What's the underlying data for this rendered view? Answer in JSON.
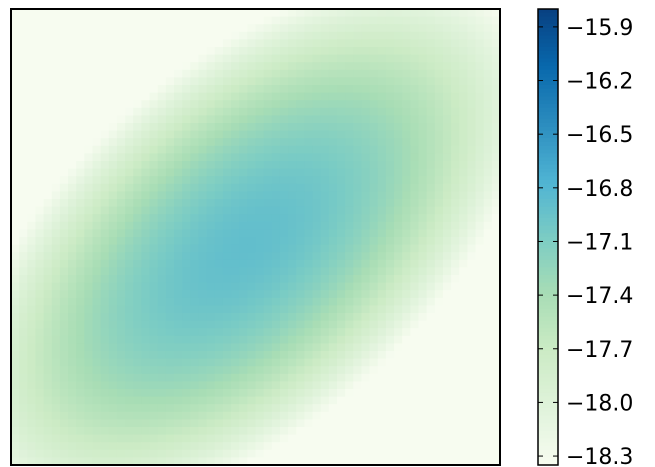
{
  "chart_data": {
    "type": "heatmap",
    "title": "",
    "xlabel": "",
    "ylabel": "",
    "colormap": "GnBu",
    "color_stops": [
      "#f7fcf0",
      "#e0f3db",
      "#ccebc5",
      "#a8ddb5",
      "#7bccc4",
      "#4eb3d3",
      "#2b8cbe",
      "#0868ac",
      "#084081"
    ],
    "value_range": [
      -18.35,
      -15.8
    ],
    "peak": {
      "x": 0.48,
      "y": 0.52,
      "value": -16.9
    },
    "edge_value": -18.35,
    "shape": "elliptical peak tilted along the diagonal from lower-left to upper-right",
    "x_axis_ticks": [],
    "y_axis_ticks": [],
    "colorbar": {
      "ticks": [
        -15.9,
        -16.2,
        -16.5,
        -16.8,
        -17.1,
        -17.4,
        -17.7,
        -18.0,
        -18.3
      ],
      "tick_labels": [
        "−15.9",
        "−16.2",
        "−16.5",
        "−16.8",
        "−17.1",
        "−17.4",
        "−17.7",
        "−18.0",
        "−18.3"
      ]
    }
  }
}
